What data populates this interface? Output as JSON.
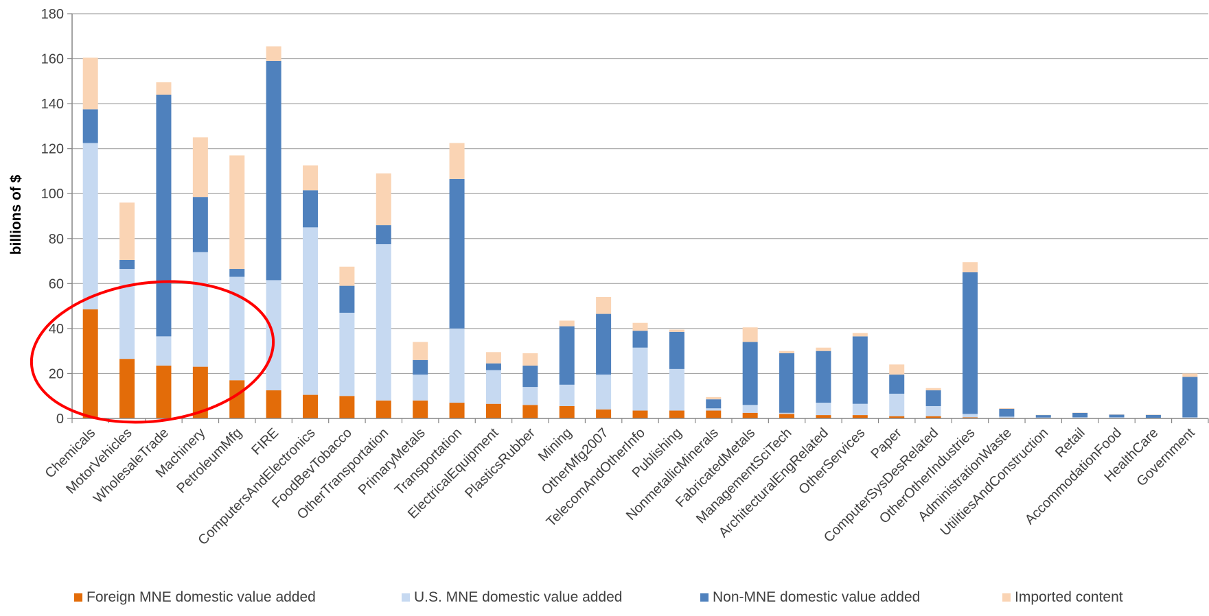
{
  "chart_data": {
    "type": "bar",
    "stacked": true,
    "ylabel": "billions of $",
    "ylim": [
      0,
      180
    ],
    "yticks": [
      0,
      20,
      40,
      60,
      80,
      100,
      120,
      140,
      160,
      180
    ],
    "grid": true,
    "legend_position": "bottom",
    "categories": [
      "Chemicals",
      "MotorVehicles",
      "WholesaleTrade",
      "Machinery",
      "PetroleumMfg",
      "FIRE",
      "ComputersAndElectronics",
      "FoodBevTobacco",
      "OtherTransportation",
      "PrimaryMetals",
      "Transportation",
      "ElectricalEquipment",
      "PlasticsRubber",
      "Mining",
      "OtherMfg2007",
      "TelecomAndOtherInfo",
      "Publishing",
      "NonmetallicMinerals",
      "FabricatedMetals",
      "ManagementSciTech",
      "ArchitecturalEngRelated",
      "OtherServices",
      "Paper",
      "ComputerSysDesRelated",
      "OtherOtherIndustries",
      "AdministrationWaste",
      "UtilitiesAndConstruction",
      "Retail",
      "AccommodationFood",
      "HealthCare",
      "Government"
    ],
    "series": [
      {
        "name": "Foreign MNE domestic value added",
        "color": "#E36C09",
        "values": [
          48.5,
          26.5,
          23.5,
          23,
          17,
          12.5,
          10.5,
          10,
          8,
          8,
          7,
          6.5,
          6,
          5.5,
          4,
          3.5,
          3.5,
          3.5,
          2.5,
          2,
          1.5,
          1.5,
          1,
          1,
          0.5,
          0.3,
          0.2,
          0.2,
          0.2,
          0.1,
          0.2
        ]
      },
      {
        "name": "U.S. MNE domestic value added",
        "color": "#C6D9F1",
        "values": [
          74,
          40,
          13,
          51,
          46,
          49,
          74.5,
          37,
          69.5,
          11.5,
          33,
          15,
          8,
          9.5,
          15.5,
          28,
          18.5,
          1,
          3.5,
          0.5,
          5.5,
          5,
          10,
          4.5,
          1.5,
          0.5,
          0.2,
          0.3,
          0.3,
          0.2,
          0.3
        ]
      },
      {
        "name": "Non-MNE domestic value added",
        "color": "#4F81BD",
        "values": [
          15,
          4,
          107.5,
          24.5,
          3.5,
          97.5,
          16.5,
          12,
          8.5,
          6.5,
          66.5,
          3,
          9.5,
          26,
          27,
          7.5,
          16.5,
          4,
          28,
          26.5,
          23,
          30,
          8.5,
          7,
          63,
          3.5,
          1.1,
          2,
          1.2,
          1.3,
          18
        ]
      },
      {
        "name": "Imported content",
        "color": "#FAD4B4",
        "values": [
          23,
          25.5,
          5.5,
          26.5,
          50.5,
          6.5,
          11,
          8.5,
          23,
          8,
          16,
          5,
          5.5,
          2.5,
          7.5,
          3.5,
          1,
          1,
          6.5,
          1,
          1.5,
          1.5,
          4.5,
          1,
          4.5,
          0.3,
          0.1,
          0.1,
          0.1,
          0.1,
          1.5
        ]
      }
    ]
  }
}
